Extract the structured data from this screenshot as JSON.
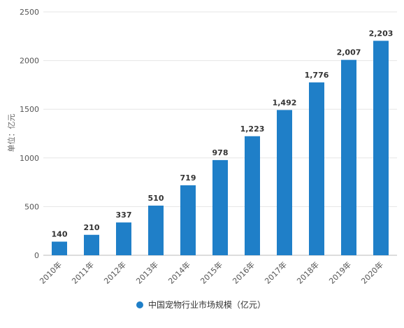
{
  "chart_data": {
    "type": "bar",
    "categories": [
      "2010年",
      "2011年",
      "2012年",
      "2013年",
      "2014年",
      "2015年",
      "2016年",
      "2017年",
      "2018年",
      "2019年",
      "2020年"
    ],
    "series": [
      {
        "name": "中国宠物行业市场规模（亿元）",
        "values": [
          140,
          210,
          337,
          510,
          719,
          978,
          1223,
          1492,
          1776,
          2007,
          2203
        ],
        "labels": [
          "140",
          "210",
          "337",
          "510",
          "719",
          "978",
          "1,223",
          "1,492",
          "1,776",
          "2,007",
          "2,203"
        ]
      }
    ],
    "ylabel": "单位：亿元",
    "ylim": [
      0,
      2500
    ],
    "yticks": [
      0,
      500,
      1000,
      1500,
      2000,
      2500
    ],
    "grid": true,
    "legend_position": "bottom",
    "colors": {
      "bar": "#1f7fc8",
      "grid": "#e6e6e6",
      "axis": "#bbbbbb"
    }
  }
}
